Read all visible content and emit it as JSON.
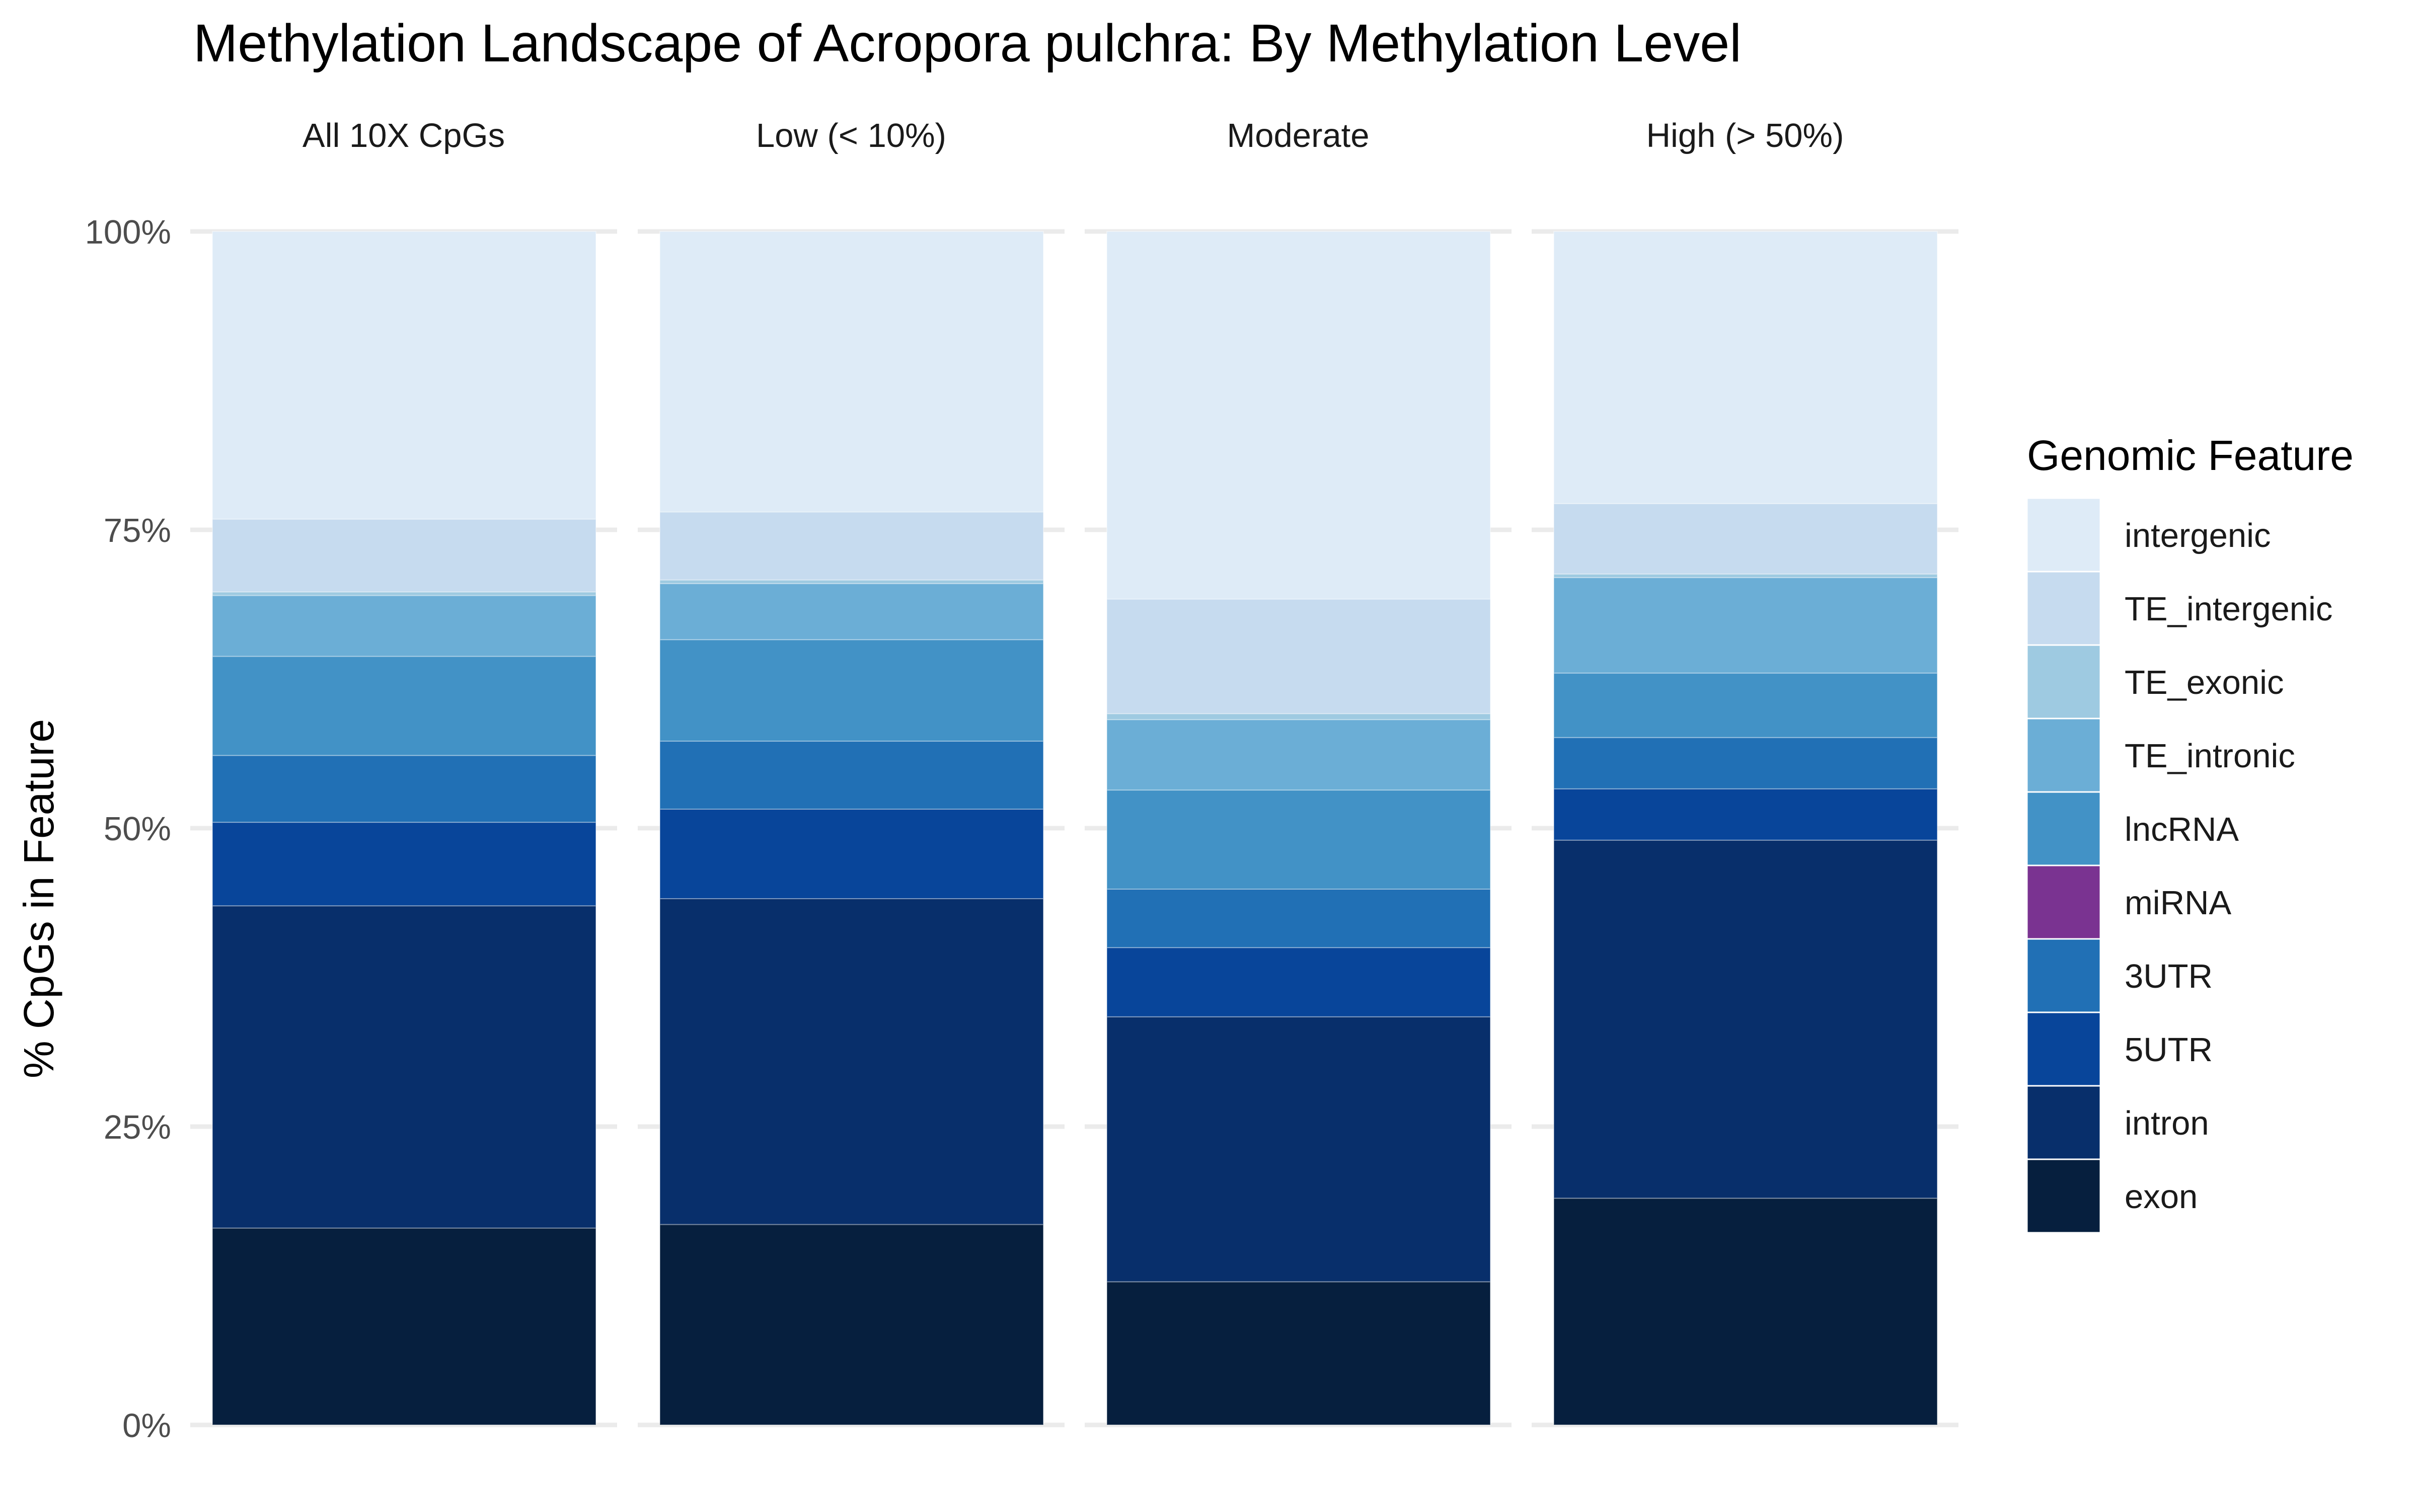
{
  "chart_data": {
    "type": "bar",
    "stacked": true,
    "percent": true,
    "title": "Methylation Landscape of Acropora pulchra: By Methylation Level",
    "xlabel": "",
    "ylabel": "% CpGs in Feature",
    "ylim": [
      0,
      100
    ],
    "y_ticks": [
      "0%",
      "25%",
      "50%",
      "75%",
      "100%"
    ],
    "y_tick_values": [
      0,
      25,
      50,
      75,
      100
    ],
    "grid": true,
    "legend_title": "Genomic Feature",
    "legend_placement": "right",
    "legend_entries": [
      "intergenic",
      "TE_intergenic",
      "TE_exonic",
      "TE_intronic",
      "lncRNA",
      "miRNA",
      "3UTR",
      "5UTR",
      "intron",
      "exon"
    ],
    "panels": [
      "All 10X CpGs",
      "Low (< 10%)",
      "Moderate",
      "High (> 50%)"
    ],
    "series": [
      {
        "name": "exon",
        "color": "#061f3e",
        "values": [
          16.5,
          16.8,
          12.0,
          19.0
        ]
      },
      {
        "name": "intron",
        "color": "#082f6b",
        "values": [
          27.0,
          27.3,
          22.2,
          30.0
        ]
      },
      {
        "name": "5UTR",
        "color": "#08459a",
        "values": [
          7.0,
          7.5,
          5.8,
          4.3
        ]
      },
      {
        "name": "3UTR",
        "color": "#2170b5",
        "values": [
          5.6,
          5.7,
          4.9,
          4.3
        ]
      },
      {
        "name": "miRNA",
        "color": "#7a3391",
        "values": [
          0.0,
          0.0,
          0.0,
          0.0
        ]
      },
      {
        "name": "lncRNA",
        "color": "#4292c6",
        "values": [
          8.3,
          8.5,
          8.3,
          5.4
        ]
      },
      {
        "name": "TE_intronic",
        "color": "#6baed6",
        "values": [
          5.1,
          4.7,
          5.9,
          8.0
        ]
      },
      {
        "name": "TE_exonic",
        "color": "#9ecae1",
        "values": [
          0.3,
          0.3,
          0.5,
          0.3
        ]
      },
      {
        "name": "TE_intergenic",
        "color": "#c6dbef",
        "values": [
          6.1,
          5.7,
          9.6,
          5.9
        ]
      },
      {
        "name": "intergenic",
        "color": "#deebf7",
        "values": [
          24.1,
          23.5,
          30.8,
          22.8
        ]
      }
    ]
  }
}
